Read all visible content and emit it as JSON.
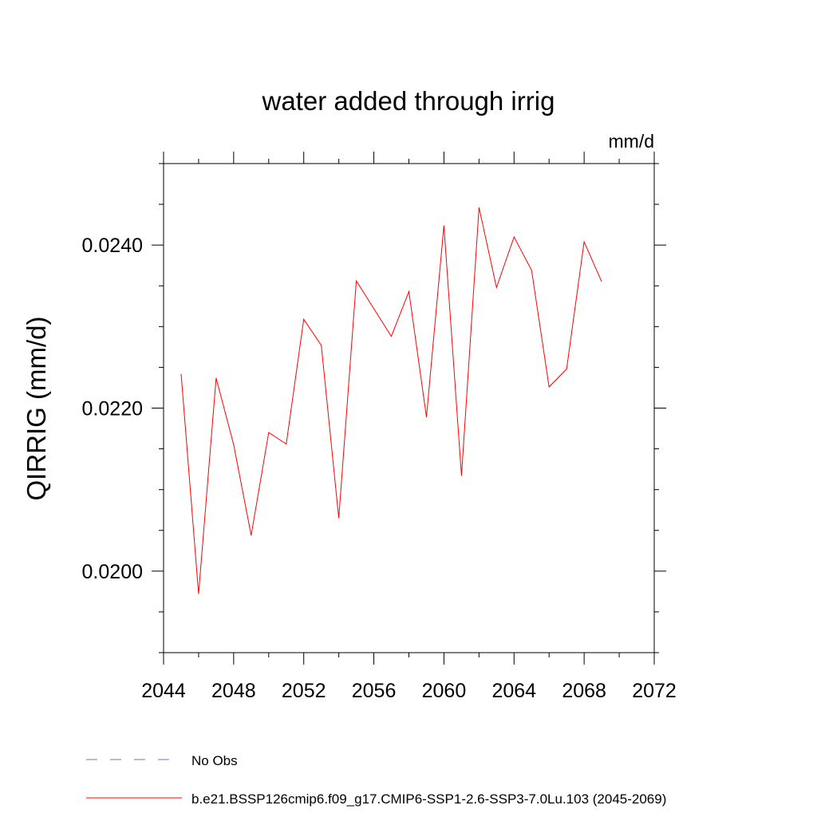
{
  "chart_data": {
    "type": "line",
    "title": "water added through irrig",
    "units_label": "mm/d",
    "ylabel": "QIRRIG  (mm/d)",
    "xlabel": "",
    "xlim": [
      2044,
      2072
    ],
    "ylim": [
      0.019,
      0.025
    ],
    "x_ticks": [
      "2044",
      "2048",
      "2052",
      "2056",
      "2060",
      "2064",
      "2068",
      "2072"
    ],
    "y_ticks": [
      "0.0200",
      "0.0220",
      "0.0240"
    ],
    "grid": false,
    "legend_position": "bottom",
    "series": [
      {
        "name": "b.e21.BSSP126cmip6.f09_g17.CMIP6-SSP1-2.6-SSP3-7.0Lu.103 (2045-2069)",
        "color": "#ff0000",
        "style": "solid",
        "x": [
          2045,
          2046,
          2047,
          2048,
          2049,
          2050,
          2051,
          2052,
          2053,
          2054,
          2055,
          2056,
          2057,
          2058,
          2059,
          2060,
          2061,
          2062,
          2063,
          2064,
          2065,
          2066,
          2067,
          2068,
          2069
        ],
        "values": [
          0.02242,
          0.01972,
          0.02237,
          0.02155,
          0.02044,
          0.0217,
          0.02156,
          0.02309,
          0.02277,
          0.02065,
          0.02356,
          0.02322,
          0.02288,
          0.02343,
          0.02189,
          0.02424,
          0.02117,
          0.02446,
          0.02348,
          0.0241,
          0.02369,
          0.02226,
          0.02248,
          0.02404,
          0.02355
        ]
      }
    ],
    "legend": [
      {
        "label": "No Obs",
        "color": "#7070c0",
        "style": "dashed"
      },
      {
        "label": "b.e21.BSSP126cmip6.f09_g17.CMIP6-SSP1-2.6-SSP3-7.0Lu.103 (2045-2069)",
        "color": "#ff0000",
        "style": "solid"
      }
    ]
  }
}
